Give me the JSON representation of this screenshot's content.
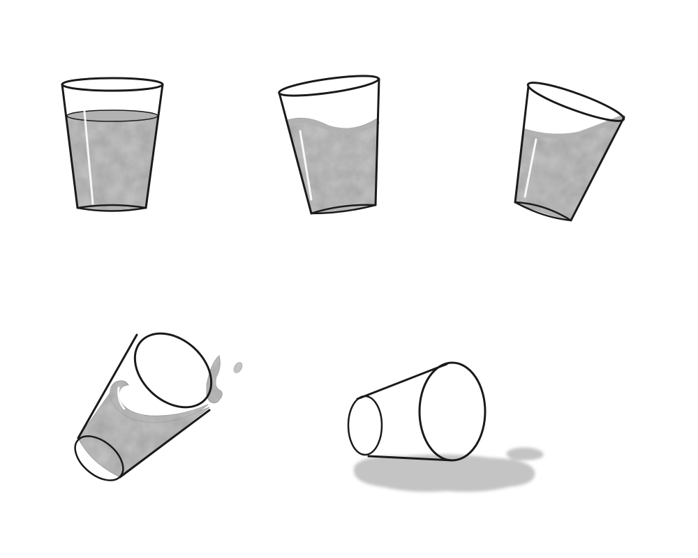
{
  "scene": {
    "background": "#ffffff",
    "ink_color": "#1a1a1a",
    "water_color": "#c4c4c4",
    "water_shade": "#b2b2b2",
    "highlight_color": "#ffffff",
    "panels": [
      {
        "name": "glass-upright",
        "state": "upright, full of water"
      },
      {
        "name": "glass-tilting",
        "state": "tilting slightly, water surface sloped"
      },
      {
        "name": "glass-tipping",
        "state": "tipping further, water near rim"
      },
      {
        "name": "glass-falling",
        "state": "falling, water splashing out"
      },
      {
        "name": "glass-fallen",
        "state": "lying on its side, water spilled"
      }
    ]
  }
}
